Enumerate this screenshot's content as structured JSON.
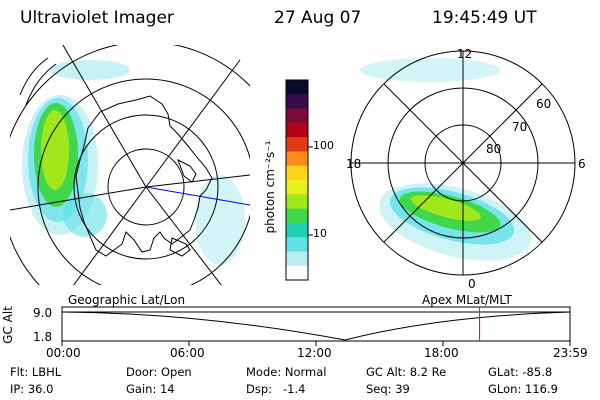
{
  "header": {
    "title": "Ultraviolet Imager",
    "date": "27 Aug 07",
    "time": "19:45:49 UT"
  },
  "colorbar": {
    "unit": "photon cm⁻²s⁻¹",
    "ticks": [
      "100",
      "10"
    ],
    "colors": [
      "#0a0a2a",
      "#3a0a4a",
      "#7a0a3a",
      "#b5001a",
      "#e03a1a",
      "#ff8a1a",
      "#ffd41a",
      "#e8f01a",
      "#a0e81a",
      "#40d84a",
      "#20d0b0",
      "#60e0e8",
      "#b8eef2",
      "#ffffff"
    ]
  },
  "right_map": {
    "hours": [
      "12",
      "18",
      "6",
      "0"
    ],
    "lats": [
      "60",
      "70",
      "80"
    ],
    "marker_color": "#0000ff"
  },
  "timeline": {
    "left_label": "Geographic Lat/Lon",
    "right_label": "Apex MLat/MLT",
    "axis_label": "GC Alt",
    "y_ticks": [
      "9.0",
      "1.8"
    ],
    "x_ticks": [
      "00:00",
      "06:00",
      "12:00",
      "18:00",
      "23:59"
    ],
    "current_time_fraction": 0.822,
    "marker_color": "#ff0000"
  },
  "footer": {
    "row1": [
      {
        "label": "Flt:",
        "value": "LBHL"
      },
      {
        "label": "Door:",
        "value": "Open"
      },
      {
        "label": "Mode:",
        "value": "Normal"
      },
      {
        "label": "GC Alt:",
        "value": "8.2 Re"
      },
      {
        "label": "GLat:",
        "value": "-85.8"
      }
    ],
    "row2": [
      {
        "label": "IP:",
        "value": "36.0"
      },
      {
        "label": "Gain:",
        "value": "14"
      },
      {
        "label": "Dsp:",
        "value": "-1.4"
      },
      {
        "label": "Seq:",
        "value": "39"
      },
      {
        "label": "GLon:",
        "value": "116.9"
      }
    ]
  }
}
